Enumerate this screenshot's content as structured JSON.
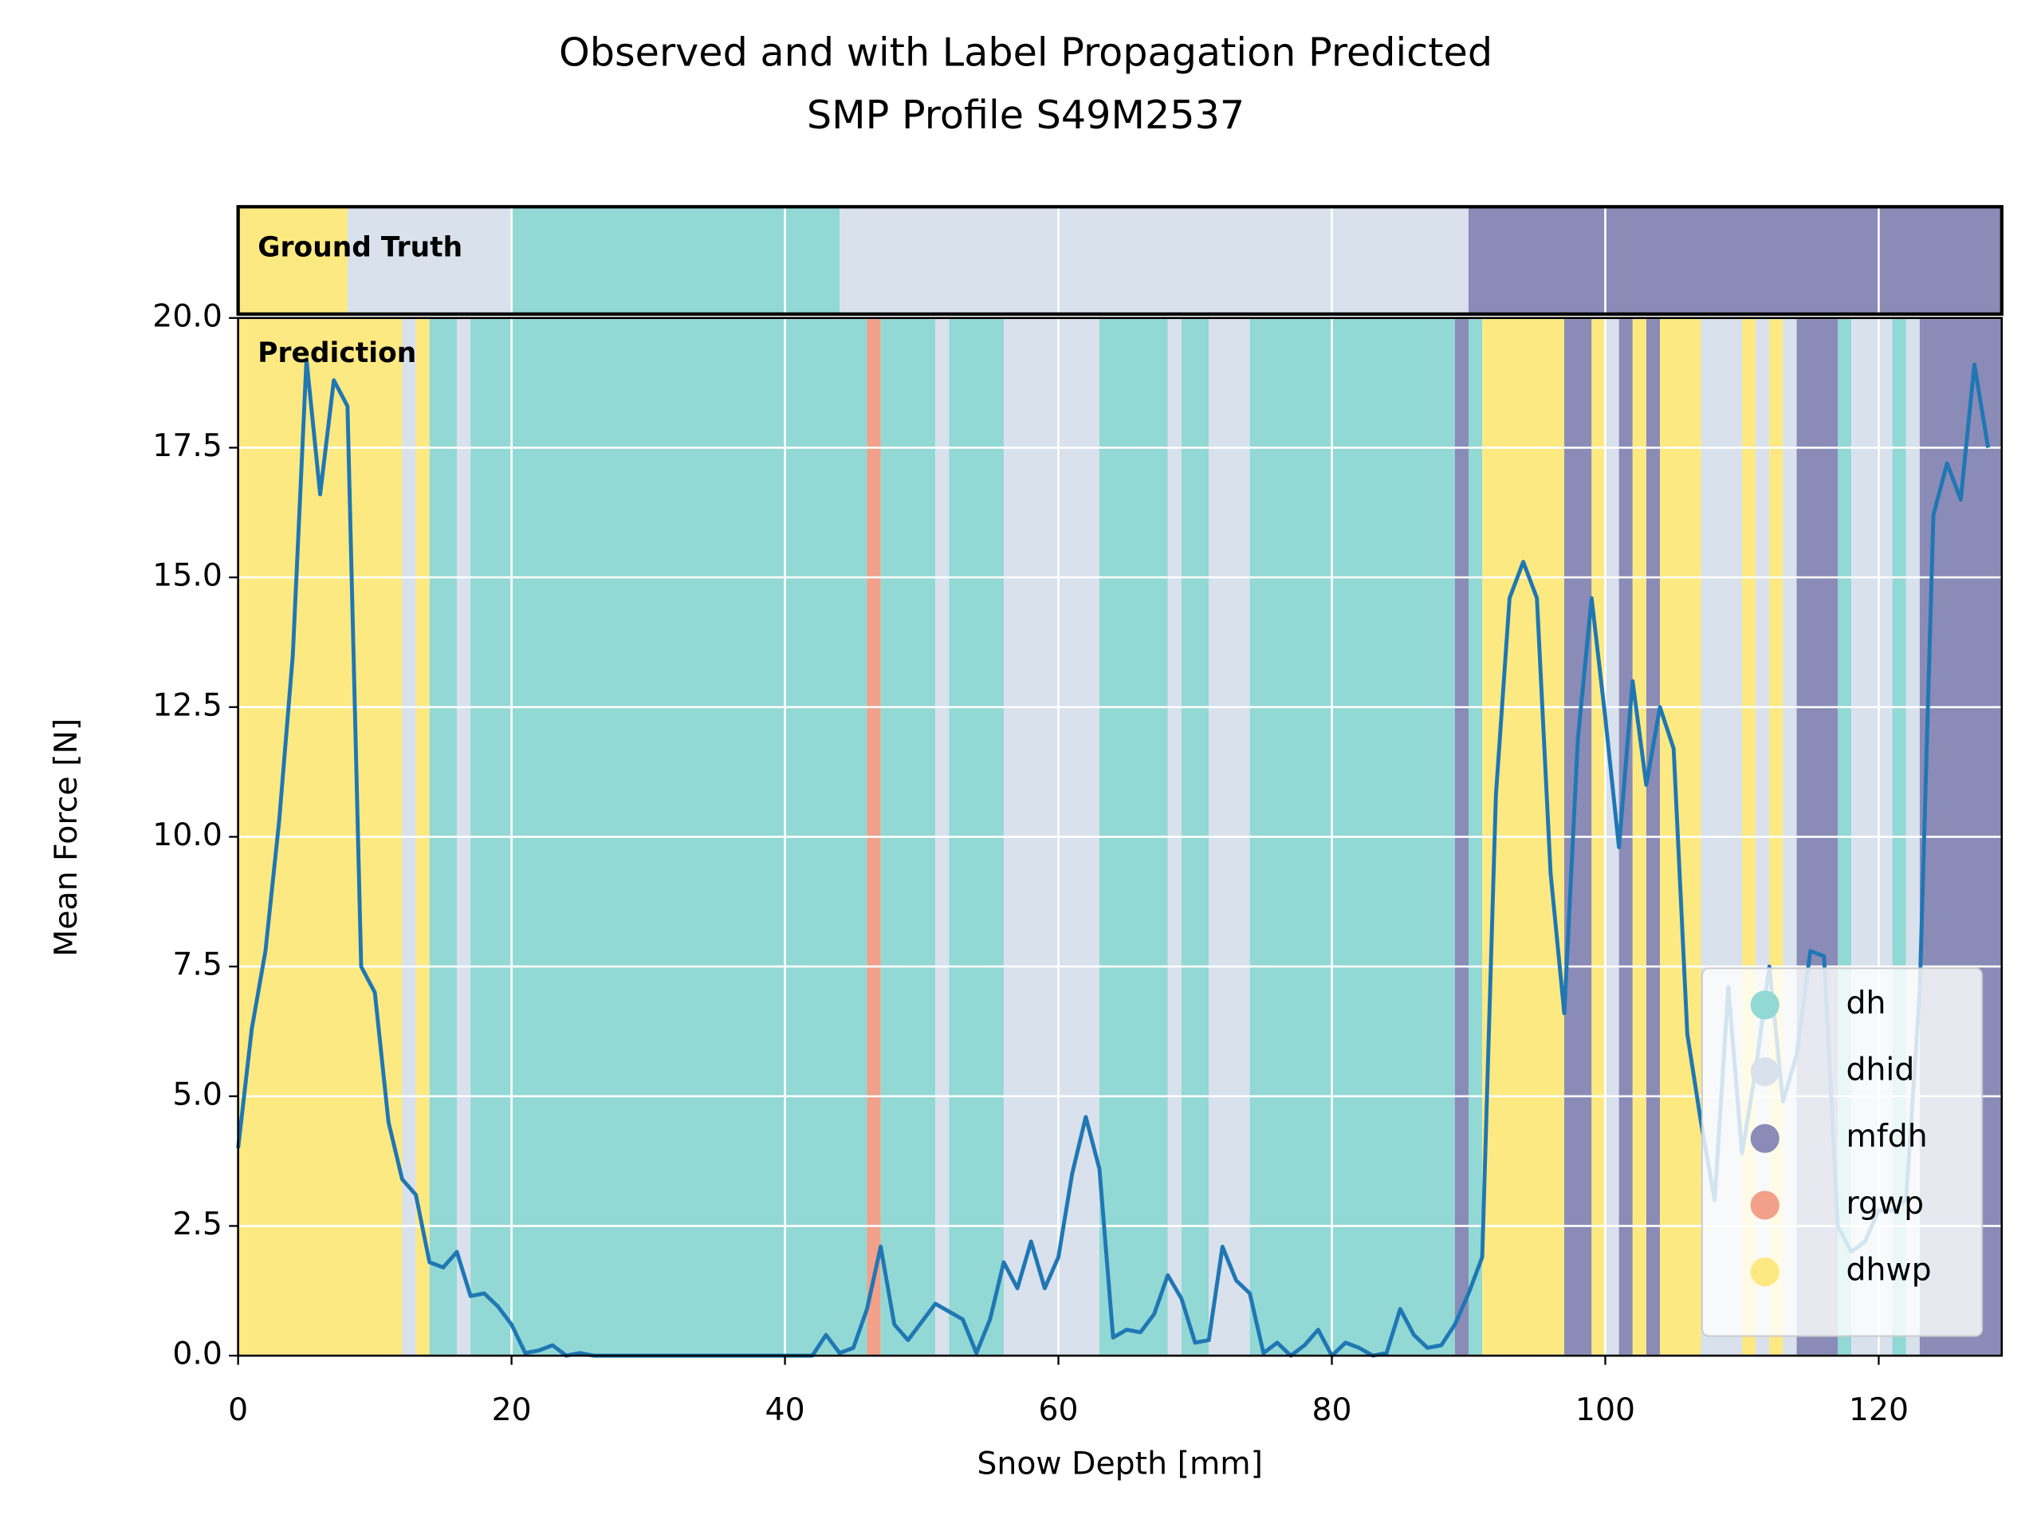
{
  "chart_data": {
    "type": "line",
    "title": "Observed and with Label Propagation Predicted",
    "subtitle": "SMP Profile S49M2537",
    "x_label": "Snow Depth [mm]",
    "y_label": "Mean Force [N]",
    "xlim": [
      0,
      129
    ],
    "ylim": [
      0,
      20
    ],
    "xticks": [
      0,
      20,
      40,
      60,
      80,
      100,
      120
    ],
    "yticks": [
      {
        "value": 0,
        "label": "0.0"
      },
      2.5,
      {
        "value": 5,
        "label": "5.0"
      },
      7.5,
      {
        "value": 10,
        "label": "10.0"
      },
      12.5,
      {
        "value": 15,
        "label": "15.0"
      },
      17.5,
      {
        "value": 20,
        "label": "20.0"
      }
    ],
    "grid": true,
    "legend": "lower right",
    "line_color": "#1f77b4",
    "classes": [
      {
        "name": "dh",
        "color": "#92d8d4"
      },
      {
        "name": "dhid",
        "color": "#d8e1ec"
      },
      {
        "name": "mfdh",
        "color": "#8a8bb7"
      },
      {
        "name": "rgwp",
        "color": "#f2a08a"
      },
      {
        "name": "dhwp",
        "color": "#fde981"
      }
    ],
    "ground_truth_label": "Ground Truth",
    "ground_truth": [
      {
        "start": 0,
        "end": 8,
        "class": "dhwp"
      },
      {
        "start": 8,
        "end": 20,
        "class": "dhid"
      },
      {
        "start": 20,
        "end": 44,
        "class": "dh"
      },
      {
        "start": 44,
        "end": 90,
        "class": "dhid"
      },
      {
        "start": 90,
        "end": 129,
        "class": "mfdh"
      }
    ],
    "prediction_label": "Prediction",
    "prediction": [
      {
        "start": 0,
        "end": 12,
        "class": "dhwp"
      },
      {
        "start": 12,
        "end": 13,
        "class": "dhid"
      },
      {
        "start": 13,
        "end": 14,
        "class": "dhwp"
      },
      {
        "start": 14,
        "end": 16,
        "class": "dh"
      },
      {
        "start": 16,
        "end": 17,
        "class": "dhid"
      },
      {
        "start": 17,
        "end": 46,
        "class": "dh"
      },
      {
        "start": 46,
        "end": 47,
        "class": "rgwp"
      },
      {
        "start": 47,
        "end": 51,
        "class": "dh"
      },
      {
        "start": 51,
        "end": 52,
        "class": "dhid"
      },
      {
        "start": 52,
        "end": 56,
        "class": "dh"
      },
      {
        "start": 56,
        "end": 63,
        "class": "dhid"
      },
      {
        "start": 63,
        "end": 68,
        "class": "dh"
      },
      {
        "start": 68,
        "end": 69,
        "class": "dhid"
      },
      {
        "start": 69,
        "end": 71,
        "class": "dh"
      },
      {
        "start": 71,
        "end": 74,
        "class": "dhid"
      },
      {
        "start": 74,
        "end": 89,
        "class": "dh"
      },
      {
        "start": 89,
        "end": 90,
        "class": "mfdh"
      },
      {
        "start": 90,
        "end": 91,
        "class": "dh"
      },
      {
        "start": 91,
        "end": 97,
        "class": "dhwp"
      },
      {
        "start": 97,
        "end": 99,
        "class": "mfdh"
      },
      {
        "start": 99,
        "end": 100,
        "class": "dhwp"
      },
      {
        "start": 100,
        "end": 101,
        "class": "dhid"
      },
      {
        "start": 101,
        "end": 102,
        "class": "mfdh"
      },
      {
        "start": 102,
        "end": 103,
        "class": "dhwp"
      },
      {
        "start": 103,
        "end": 104,
        "class": "mfdh"
      },
      {
        "start": 104,
        "end": 107,
        "class": "dhwp"
      },
      {
        "start": 107,
        "end": 110,
        "class": "dhid"
      },
      {
        "start": 110,
        "end": 111,
        "class": "dhwp"
      },
      {
        "start": 111,
        "end": 112,
        "class": "dhid"
      },
      {
        "start": 112,
        "end": 113,
        "class": "dhwp"
      },
      {
        "start": 113,
        "end": 114,
        "class": "dhid"
      },
      {
        "start": 114,
        "end": 117,
        "class": "mfdh"
      },
      {
        "start": 117,
        "end": 118,
        "class": "dh"
      },
      {
        "start": 118,
        "end": 121,
        "class": "dhid"
      },
      {
        "start": 121,
        "end": 122,
        "class": "dh"
      },
      {
        "start": 122,
        "end": 123,
        "class": "dhid"
      },
      {
        "start": 123,
        "end": 129,
        "class": "mfdh"
      }
    ],
    "x": [
      0,
      1,
      2,
      3,
      4,
      5,
      6,
      7,
      8,
      9,
      10,
      11,
      12,
      13,
      14,
      15,
      16,
      17,
      18,
      19,
      20,
      21,
      22,
      23,
      24,
      25,
      26,
      27,
      28,
      29,
      30,
      31,
      32,
      33,
      34,
      35,
      36,
      37,
      38,
      39,
      40,
      41,
      42,
      43,
      44,
      45,
      46,
      47,
      48,
      49,
      50,
      51,
      52,
      53,
      54,
      55,
      56,
      57,
      58,
      59,
      60,
      61,
      62,
      63,
      64,
      65,
      66,
      67,
      68,
      69,
      70,
      71,
      72,
      73,
      74,
      75,
      76,
      77,
      78,
      79,
      80,
      81,
      82,
      83,
      84,
      85,
      86,
      87,
      88,
      89,
      90,
      91,
      92,
      93,
      94,
      95,
      96,
      97,
      98,
      99,
      100,
      101,
      102,
      103,
      104,
      105,
      106,
      107,
      108,
      109,
      110,
      111,
      112,
      113,
      114,
      115,
      116,
      117,
      118,
      119,
      120,
      121,
      122,
      123,
      124,
      125,
      126,
      127,
      128
    ],
    "values": [
      4.0,
      6.3,
      7.8,
      10.3,
      13.5,
      19.2,
      16.6,
      18.8,
      18.3,
      7.5,
      7.0,
      4.5,
      3.4,
      3.1,
      1.8,
      1.7,
      2.0,
      1.15,
      1.2,
      0.95,
      0.6,
      0.05,
      0.1,
      0.2,
      0.0,
      0.05,
      0.0,
      0.0,
      0.0,
      0.0,
      0.0,
      0.0,
      0.0,
      0.0,
      0.0,
      0.0,
      0.0,
      0.0,
      0.0,
      0.0,
      0.0,
      0.0,
      0.0,
      0.4,
      0.05,
      0.15,
      0.9,
      2.1,
      0.6,
      0.3,
      0.65,
      1.0,
      0.85,
      0.7,
      0.05,
      0.7,
      1.8,
      1.3,
      2.2,
      1.3,
      1.9,
      3.5,
      4.6,
      3.6,
      0.35,
      0.5,
      0.45,
      0.8,
      1.55,
      1.1,
      0.25,
      0.3,
      2.1,
      1.45,
      1.2,
      0.05,
      0.25,
      0.0,
      0.2,
      0.5,
      0.0,
      0.25,
      0.15,
      0.0,
      0.05,
      0.9,
      0.4,
      0.15,
      0.2,
      0.6,
      1.2,
      1.9,
      10.8,
      14.6,
      15.3,
      14.6,
      9.3,
      6.6,
      11.9,
      14.6,
      12.3,
      9.8,
      13.0,
      11.0,
      12.5,
      11.7,
      6.2,
      4.5,
      3.0,
      7.1,
      3.9,
      5.5,
      7.5,
      4.9,
      5.8,
      7.8,
      7.7,
      2.5,
      2.0,
      2.2,
      2.8,
      2.8,
      3.0,
      7.0,
      16.2,
      17.2,
      16.5,
      19.1,
      17.5
    ]
  }
}
